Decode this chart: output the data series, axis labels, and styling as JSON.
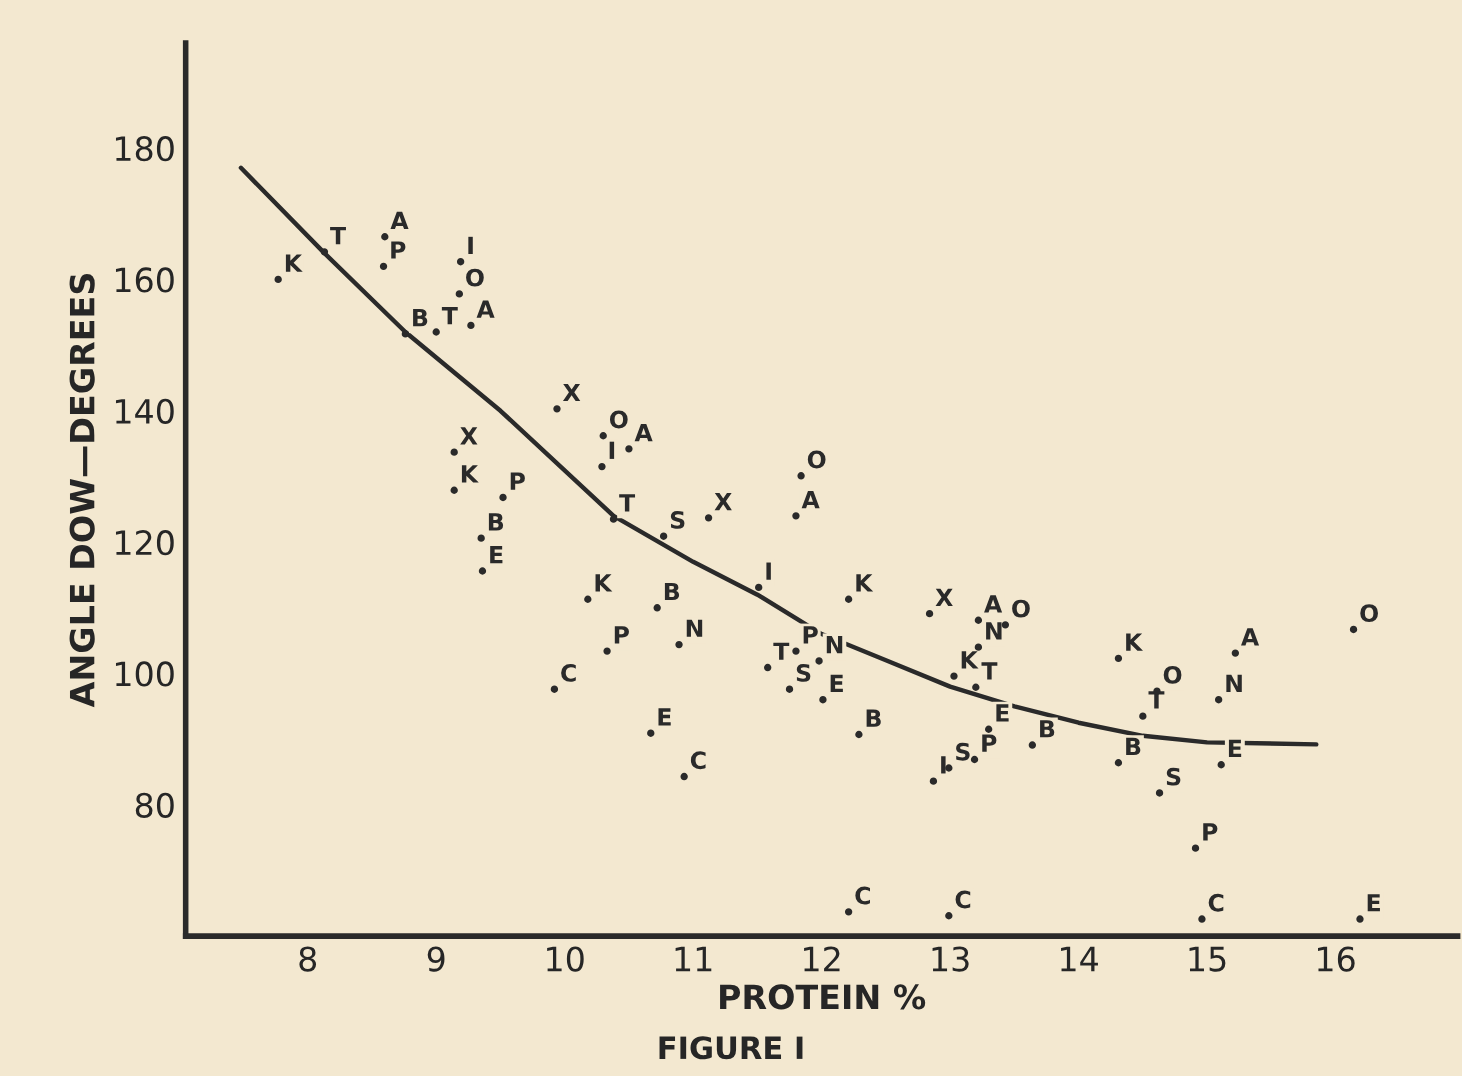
{
  "chart_data": {
    "type": "scatter",
    "xlabel": "PROTEIN %",
    "ylabel": "ANGLE DOW—DEGREES",
    "annotations": [
      "FIGURE I"
    ],
    "xlim": [
      7.05,
      16.95
    ],
    "ylim": [
      60,
      196
    ],
    "xticks": [
      8,
      9,
      10,
      11,
      12,
      13,
      14,
      15,
      16
    ],
    "yticks": [
      80,
      100,
      120,
      140,
      160,
      180
    ],
    "grid": false,
    "legend": false,
    "series": [
      {
        "name": "K",
        "color": "#2a2a2a",
        "x": [
          7.77,
          9.14,
          10.18,
          12.21,
          13.03,
          14.31
        ],
        "values": [
          160,
          127.9,
          111.3,
          111.3,
          99.6,
          102.3
        ]
      },
      {
        "name": "T",
        "color": "#2a2a2a",
        "x": [
          8.13,
          9.0,
          10.38,
          11.58,
          13.2,
          14.5
        ],
        "values": [
          164.2,
          152,
          123.5,
          100.9,
          97.9,
          93.5
        ]
      },
      {
        "name": "A",
        "color": "#2a2a2a",
        "x": [
          8.6,
          9.27,
          10.5,
          11.8,
          13.22,
          15.22
        ],
        "values": [
          166.5,
          153,
          134.2,
          124,
          108.1,
          103.1
        ]
      },
      {
        "name": "P",
        "color": "#2a2a2a",
        "x": [
          8.59,
          9.52,
          10.33,
          11.8,
          13.19,
          14.91
        ],
        "values": [
          162,
          126.8,
          103.4,
          103.4,
          86.9,
          73.4
        ]
      },
      {
        "name": "I",
        "color": "#2a2a2a",
        "x": [
          9.19,
          10.29,
          11.51,
          12.87
        ],
        "values": [
          162.7,
          131.5,
          113.1,
          83.6
        ]
      },
      {
        "name": "O",
        "color": "#2a2a2a",
        "x": [
          9.18,
          10.3,
          11.84,
          13.43,
          14.61,
          16.14
        ],
        "values": [
          157.8,
          136.2,
          130.1,
          107.4,
          97.3,
          106.7
        ]
      },
      {
        "name": "B",
        "color": "#2a2a2a",
        "x": [
          8.76,
          9.35,
          10.72,
          12.29,
          13.64,
          14.31
        ],
        "values": [
          151.7,
          120.6,
          110,
          90.7,
          89.1,
          86.4
        ]
      },
      {
        "name": "X",
        "color": "#2a2a2a",
        "x": [
          9.94,
          9.14,
          11.12,
          12.84
        ],
        "values": [
          140.3,
          133.7,
          123.7,
          109.1
        ]
      },
      {
        "name": "S",
        "color": "#2a2a2a",
        "x": [
          10.77,
          11.75,
          12.99,
          14.63
        ],
        "values": [
          120.9,
          97.6,
          85.6,
          81.8
        ]
      },
      {
        "name": "E",
        "color": "#2a2a2a",
        "x": [
          9.36,
          10.67,
          12.01,
          13.3,
          15.11,
          16.19
        ],
        "values": [
          115.6,
          90.9,
          96,
          91.5,
          86.1,
          62.6
        ]
      },
      {
        "name": "N",
        "color": "#2a2a2a",
        "x": [
          10.89,
          11.98,
          13.22,
          15.09
        ],
        "values": [
          104.4,
          101.9,
          104,
          96
        ]
      },
      {
        "name": "C",
        "color": "#2a2a2a",
        "x": [
          9.92,
          10.93,
          12.21,
          12.99,
          14.96
        ],
        "values": [
          97.6,
          84.3,
          63.7,
          63.1,
          62.6
        ]
      },
      {
        "type": "line",
        "color": "#2a2a2a",
        "x": [
          7.48,
          8.13,
          8.76,
          9.5,
          10.38,
          11.0,
          11.5,
          12.0,
          12.5,
          13.0,
          13.5,
          14.0,
          14.5,
          15.0,
          15.85
        ],
        "values": [
          177,
          164,
          152,
          140,
          124,
          117,
          112,
          106,
          102,
          98,
          95,
          92.5,
          90.5,
          89.5,
          89.2
        ]
      }
    ]
  }
}
